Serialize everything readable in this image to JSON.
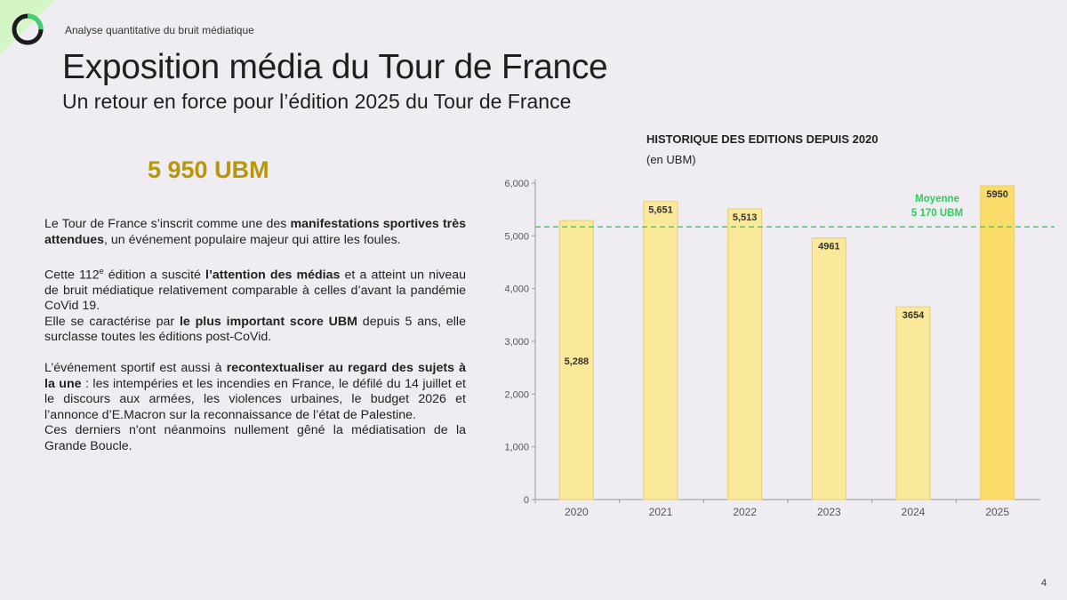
{
  "header": {
    "kicker": "Analyse quantitative du bruit médiatique",
    "title": "Exposition média du Tour de France",
    "subtitle": "Un retour en force pour l’édition 2025 du Tour de France"
  },
  "kpi": {
    "value": "5 950 UBM"
  },
  "body": {
    "p1_a": "Le Tour de France s’inscrit comme une des ",
    "p1_b": "manifestations sportives très attendues",
    "p1_c": ", un événement populaire majeur qui attire les foules.",
    "p2_a": "Cette 112",
    "p2_sup": "e",
    "p2_b": " édition a suscité ",
    "p2_c": "l’attention des médias",
    "p2_d": " et a atteint un niveau de bruit médiatique relativement comparable à celles d’avant la pandémie CoVid 19.",
    "p3_a": "Elle se caractérise par ",
    "p3_b": "le plus important score UBM",
    "p3_c": " depuis 5 ans, elle surclasse toutes les éditions post-CoVid.",
    "p4_a": "L’événement sportif est aussi à ",
    "p4_b": "recontextualiser au regard des sujets à la une",
    "p4_c": " : les intempéries et les incendies en France, le défilé du 14 juillet et le discours aux armées, les violences urbaines, le budget 2026 et l’annonce d’E.Macron sur la reconnaissance de l’état de Palestine.",
    "p5": "Ces derniers n'ont néanmoins nullement gêné la médiatisation de la Grande Boucle."
  },
  "chart_data": {
    "type": "bar",
    "title": "HISTORIQUE DES EDITIONS DEPUIS 2020",
    "subtitle": "(en UBM)",
    "categories": [
      "2020",
      "2021",
      "2022",
      "2023",
      "2024",
      "2025"
    ],
    "values": [
      5288,
      5651,
      5513,
      4961,
      3654,
      5950
    ],
    "data_labels": [
      "5,288",
      "5,651",
      "5,513",
      "4961",
      "3654",
      "5950"
    ],
    "yticks": [
      "0",
      "1,000",
      "2,000",
      "3,000",
      "4,000",
      "5,000",
      "6,000"
    ],
    "ylim": [
      0,
      6000
    ],
    "average": {
      "value": 5170,
      "label_line1": "Moyenne",
      "label_line2": "5 170 UBM"
    },
    "colors": {
      "bar": "#fbe99b",
      "bar_highlight": "#fbdc6a",
      "bar_stroke": "#e8cf70",
      "average_line": "#3fd16f",
      "average_text": "#2fcc5f"
    },
    "grid": false
  },
  "footer": {
    "page": "4"
  }
}
